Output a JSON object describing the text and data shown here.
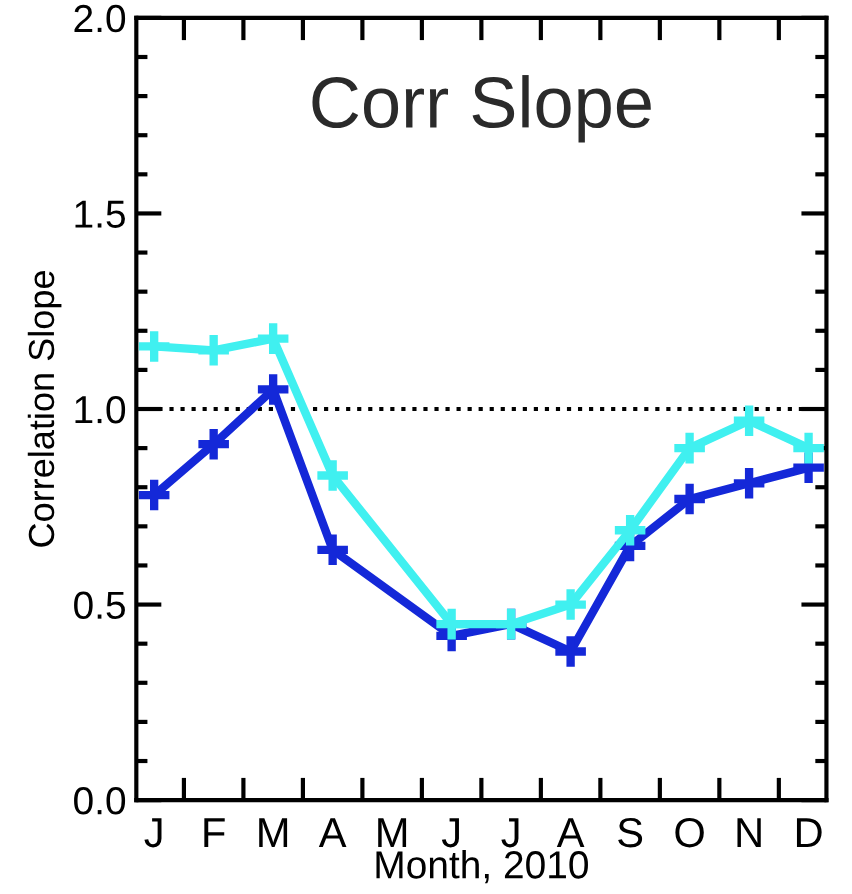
{
  "chart_data": {
    "type": "line",
    "title": "Corr Slope",
    "xlabel": "Month, 2010",
    "ylabel": "Correlation Slope",
    "categories": [
      "J",
      "F",
      "M",
      "A",
      "M",
      "J",
      "J",
      "A",
      "S",
      "O",
      "N",
      "D"
    ],
    "series": [
      {
        "color": "#40f0f0",
        "values": [
          1.16,
          1.15,
          1.18,
          0.83,
          null,
          0.45,
          0.45,
          0.5,
          0.69,
          0.9,
          0.97,
          0.9
        ]
      },
      {
        "color": "#1428d8",
        "values": [
          0.78,
          0.91,
          1.05,
          0.64,
          null,
          0.42,
          0.45,
          0.38,
          0.65,
          0.77,
          0.81,
          0.85
        ]
      }
    ],
    "ylim": [
      0,
      2.0
    ],
    "yticks": [
      {
        "value": 0,
        "label": "0.0"
      },
      {
        "value": 0.5,
        "label": "0.5"
      },
      {
        "value": 1.0,
        "label": "1.0"
      },
      {
        "value": 1.5,
        "label": "1.5"
      },
      {
        "value": 2.0,
        "label": "2.0"
      }
    ],
    "ref_lines": [
      {
        "axis": "y",
        "value": 1.0,
        "color": "#000000",
        "line_style": "dotted"
      }
    ],
    "marker": "cross",
    "line_style": "solid",
    "grid": false,
    "legend": false
  }
}
